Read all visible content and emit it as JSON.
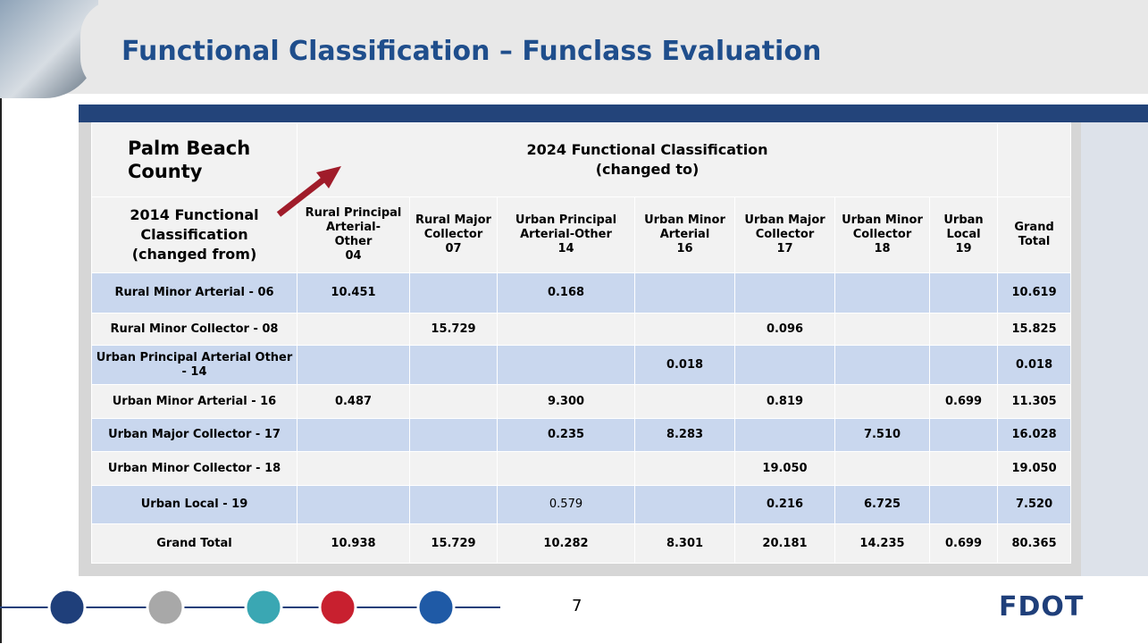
{
  "header": {
    "title": "Functional Classification – Funclass Evaluation"
  },
  "table": {
    "corner_top": [
      "Palm Beach",
      "County"
    ],
    "corner_bottom": [
      "2014 Functional",
      "Classification",
      "(changed from)"
    ],
    "group_header": [
      "2024 Functional Classification",
      "(changed to)"
    ],
    "columns": [
      [
        "Rural Principal",
        "Arterial-",
        "Other",
        "04"
      ],
      [
        "Rural Major",
        "Collector",
        "07"
      ],
      [
        "Urban Principal",
        "Arterial-Other",
        "14"
      ],
      [
        "Urban Minor",
        "Arterial",
        "16"
      ],
      [
        "Urban Major",
        "Collector",
        "17"
      ],
      [
        "Urban Minor",
        "Collector",
        "18"
      ],
      [
        "Urban",
        "Local",
        "19"
      ],
      [
        "Grand",
        "Total"
      ]
    ],
    "rows": [
      {
        "label": "Rural Minor Arterial - 06",
        "cells": [
          "10.451",
          null,
          "0.168",
          null,
          null,
          null,
          null,
          "10.619"
        ]
      },
      {
        "label": "Rural Minor Collector - 08",
        "cells": [
          null,
          "15.729",
          null,
          null,
          "0.096",
          null,
          null,
          "15.825"
        ]
      },
      {
        "label": "Urban Principal Arterial Other - 14",
        "cells": [
          null,
          null,
          null,
          "0.018",
          null,
          null,
          null,
          "0.018"
        ]
      },
      {
        "label": "Urban Minor Arterial - 16",
        "cells": [
          "0.487",
          null,
          "9.300",
          null,
          "0.819",
          null,
          "0.699",
          "11.305"
        ]
      },
      {
        "label": "Urban Major Collector - 17",
        "cells": [
          null,
          null,
          "0.235",
          "8.283",
          null,
          "7.510",
          null,
          "16.028"
        ]
      },
      {
        "label": "Urban Minor Collector - 18",
        "cells": [
          null,
          null,
          null,
          null,
          "19.050",
          null,
          null,
          "19.050"
        ]
      },
      {
        "label": "Urban Local - 19",
        "cells": [
          null,
          null,
          "0.579",
          null,
          "0.216",
          "6.725",
          null,
          "7.520"
        ]
      },
      {
        "label": "Grand Total",
        "cells": [
          "10.938",
          "15.729",
          "10.282",
          "8.301",
          "20.181",
          "14.235",
          "0.699",
          "80.365"
        ]
      }
    ]
  },
  "footer": {
    "page_number": "7",
    "logo": "FDOT"
  }
}
